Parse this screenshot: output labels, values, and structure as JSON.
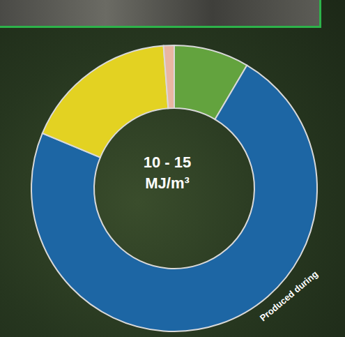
{
  "chart_data": {
    "type": "pie",
    "categories": [
      null,
      null,
      null,
      null
    ],
    "values": [
      8.5,
      72.8,
      17.5,
      1.2
    ],
    "colors": [
      "#63a33e",
      "#1d66a4",
      "#e3d222",
      "#e9b6a2"
    ],
    "annotations": [
      "10 - 15",
      "MJ/m³",
      "Produced during"
    ]
  }
}
